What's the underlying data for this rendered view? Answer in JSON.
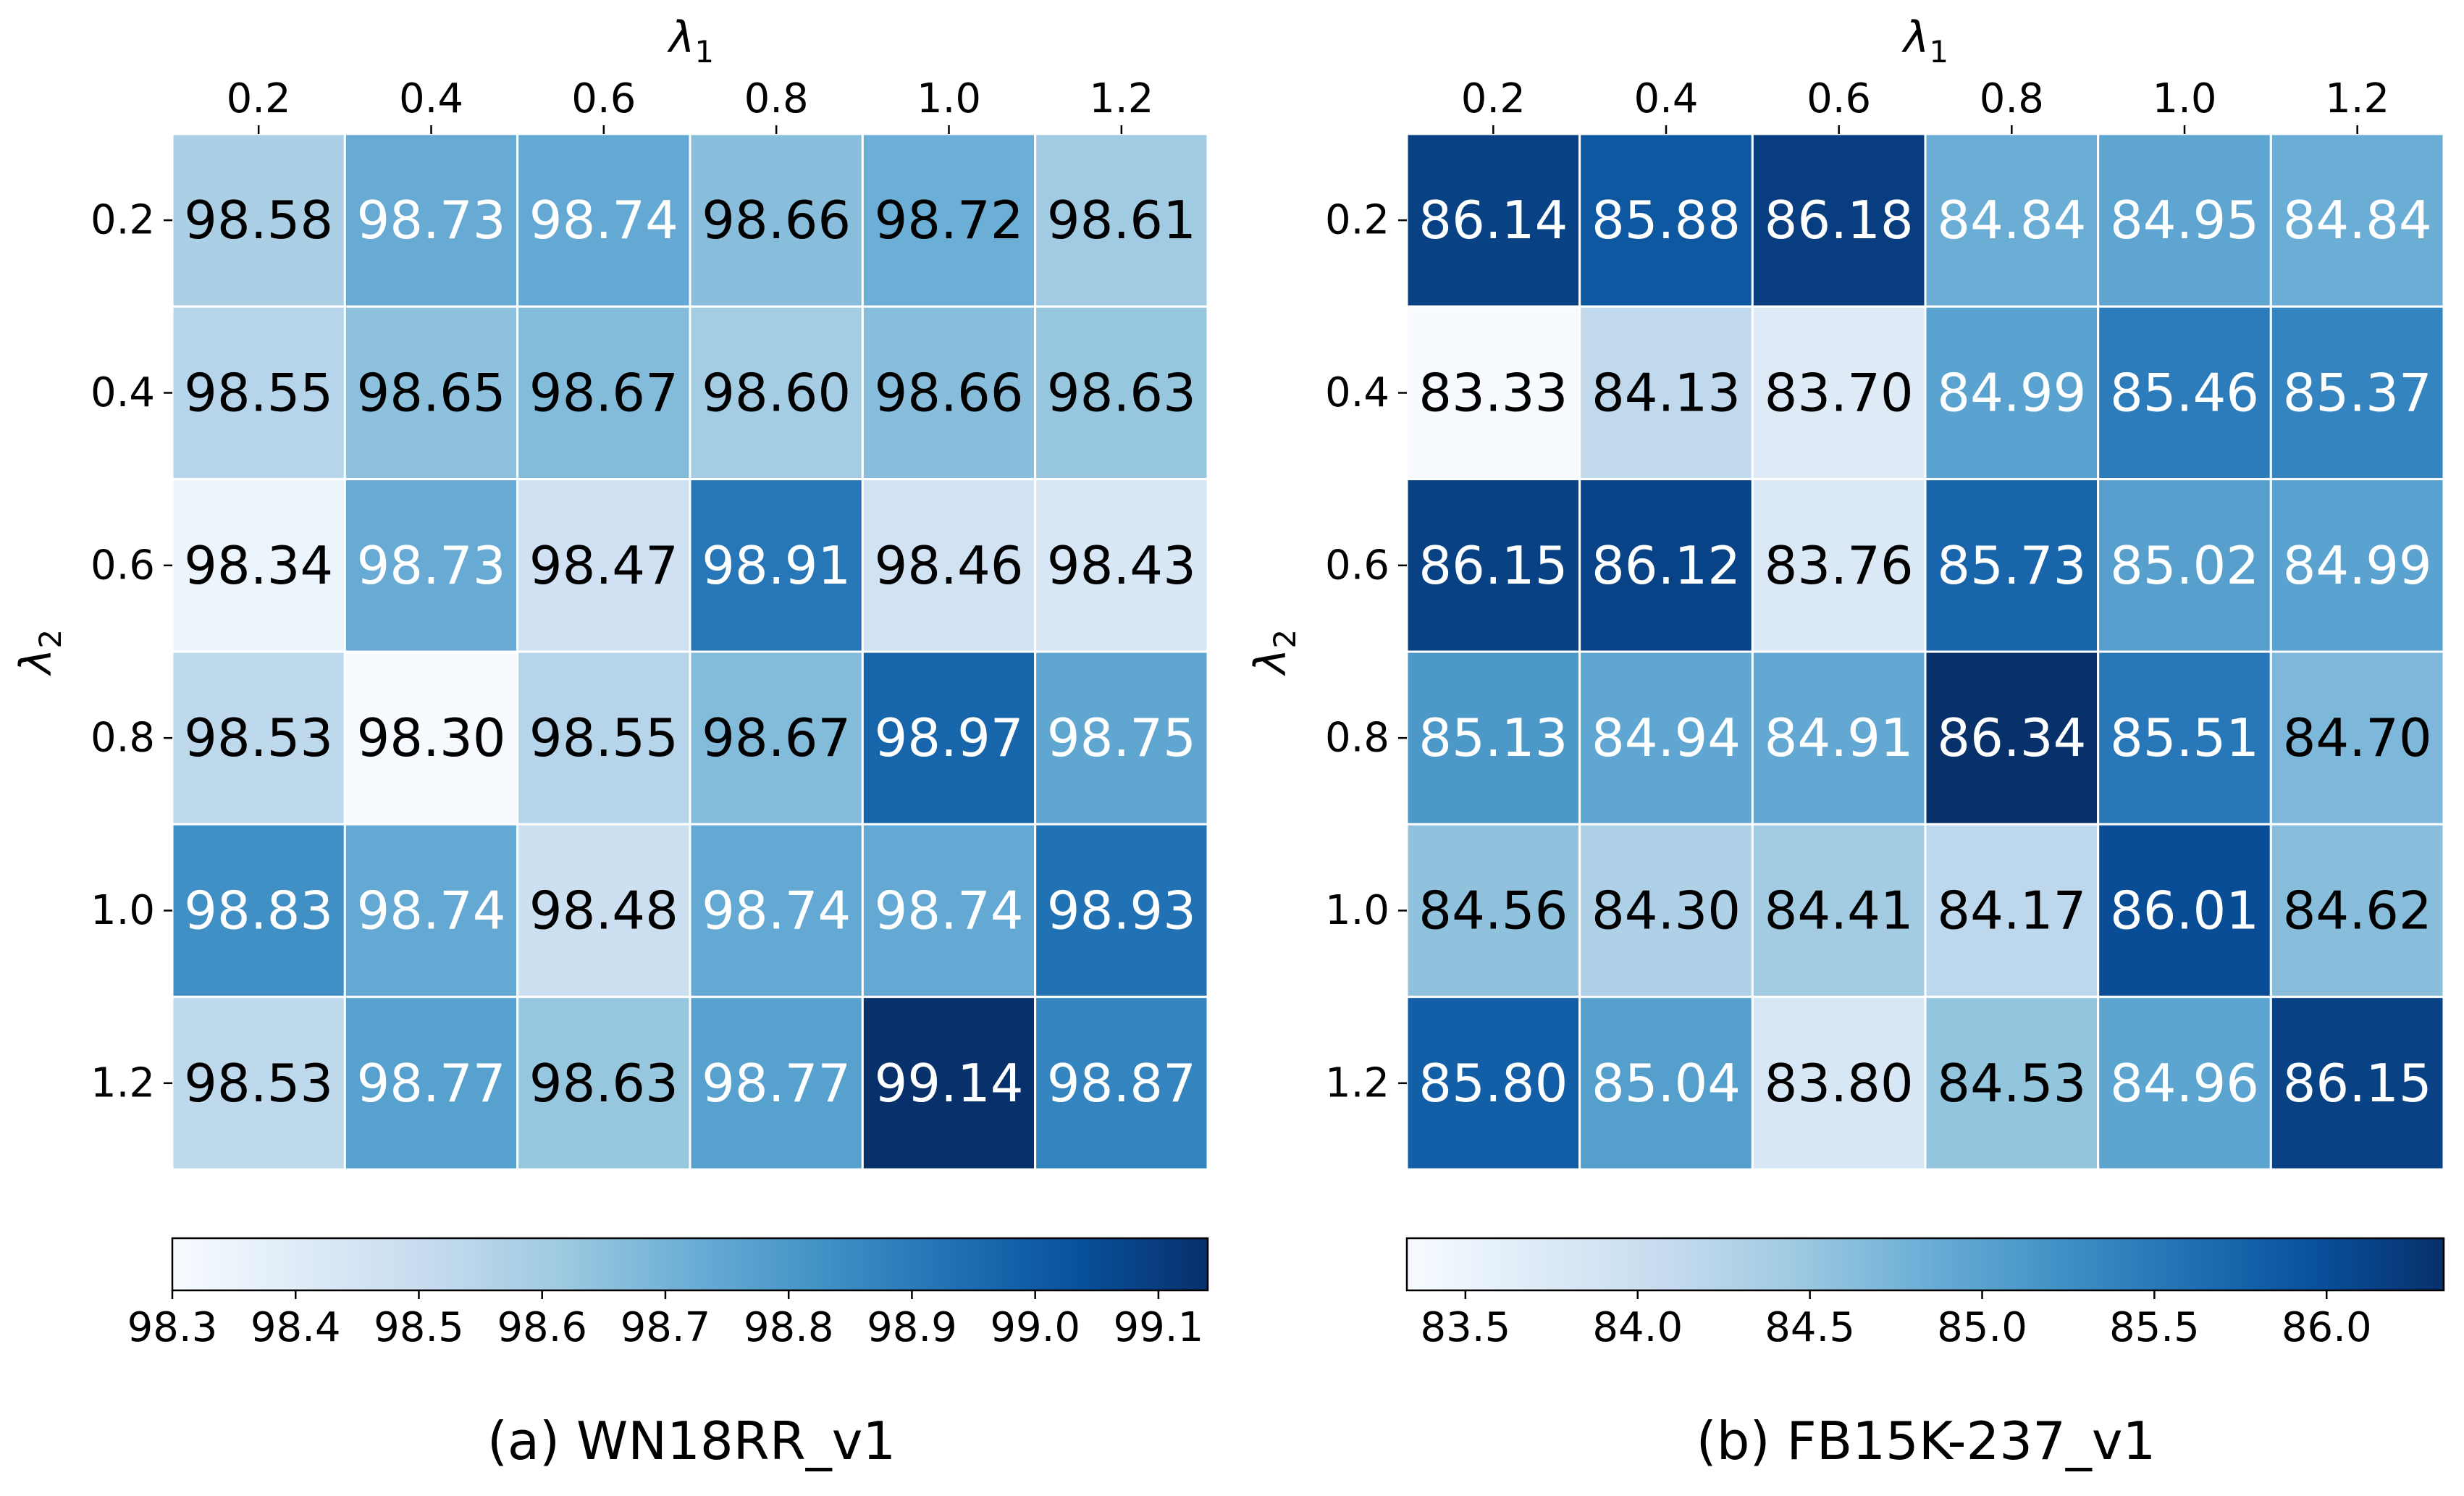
{
  "chart_data": [
    {
      "type": "heatmap",
      "caption": "(a) WN18RR_v1",
      "x_axis": {
        "symbol": "λ",
        "subscript": "1",
        "categories": [
          "0.2",
          "0.4",
          "0.6",
          "0.8",
          "1.0",
          "1.2"
        ]
      },
      "y_axis": {
        "symbol": "λ",
        "subscript": "2",
        "categories": [
          "0.2",
          "0.4",
          "0.6",
          "0.8",
          "1.0",
          "1.2"
        ]
      },
      "values": [
        [
          "98.58",
          "98.73",
          "98.74",
          "98.66",
          "98.72",
          "98.61"
        ],
        [
          "98.55",
          "98.65",
          "98.67",
          "98.60",
          "98.66",
          "98.63"
        ],
        [
          "98.34",
          "98.73",
          "98.47",
          "98.91",
          "98.46",
          "98.43"
        ],
        [
          "98.53",
          "98.30",
          "98.55",
          "98.67",
          "98.97",
          "98.75"
        ],
        [
          "98.83",
          "98.74",
          "98.48",
          "98.74",
          "98.74",
          "98.93"
        ],
        [
          "98.53",
          "98.77",
          "98.63",
          "98.77",
          "99.14",
          "98.87"
        ]
      ],
      "colorbar": {
        "vmin": 98.3,
        "vmax": 99.14,
        "ticks": [
          "98.3",
          "98.4",
          "98.5",
          "98.6",
          "98.7",
          "98.8",
          "98.9",
          "99.0",
          "99.1"
        ],
        "colormap": "Blues"
      }
    },
    {
      "type": "heatmap",
      "caption": "(b) FB15K-237_v1",
      "x_axis": {
        "symbol": "λ",
        "subscript": "1",
        "categories": [
          "0.2",
          "0.4",
          "0.6",
          "0.8",
          "1.0",
          "1.2"
        ]
      },
      "y_axis": {
        "symbol": "λ",
        "subscript": "2",
        "categories": [
          "0.2",
          "0.4",
          "0.6",
          "0.8",
          "1.0",
          "1.2"
        ]
      },
      "values": [
        [
          "86.14",
          "85.88",
          "86.18",
          "84.84",
          "84.95",
          "84.84"
        ],
        [
          "83.33",
          "84.13",
          "83.70",
          "84.99",
          "85.46",
          "85.37"
        ],
        [
          "86.15",
          "86.12",
          "83.76",
          "85.73",
          "85.02",
          "84.99"
        ],
        [
          "85.13",
          "84.94",
          "84.91",
          "86.34",
          "85.51",
          "84.70"
        ],
        [
          "84.56",
          "84.30",
          "84.41",
          "84.17",
          "86.01",
          "84.62"
        ],
        [
          "85.80",
          "85.04",
          "83.80",
          "84.53",
          "84.96",
          "86.15"
        ]
      ],
      "colorbar": {
        "vmin": 83.33,
        "vmax": 86.34,
        "ticks": [
          "83.5",
          "84.0",
          "84.5",
          "85.0",
          "85.5",
          "86.0"
        ],
        "colormap": "Blues"
      }
    }
  ]
}
